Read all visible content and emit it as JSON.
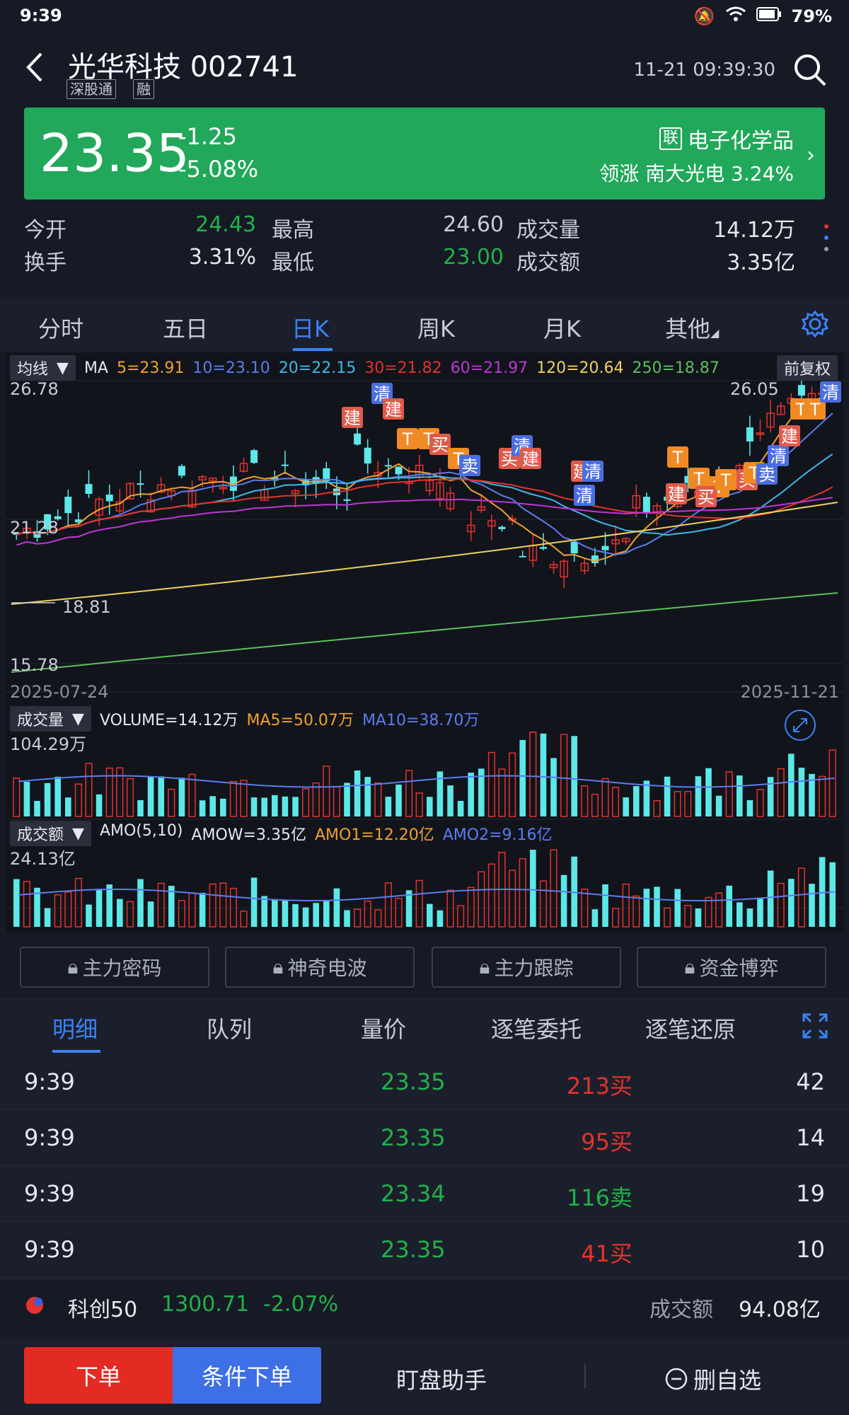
{
  "status_bar": {
    "time": "9:39",
    "battery": "79%"
  },
  "header": {
    "stock_name": "光华科技 002741",
    "tags": [
      "深股通",
      "融"
    ],
    "datetime": "11-21 09:39:30"
  },
  "quote": {
    "price": "23.35",
    "change": "-1.25",
    "change_pct": "-5.08%",
    "sector_prefix": "联",
    "sector": "电子化学品",
    "leader_label": "领涨",
    "leader": "南大光电 3.24%"
  },
  "stats": [
    {
      "label": "今开",
      "value": "24.43",
      "color": "#22b04b"
    },
    {
      "label": "最高",
      "value": "24.60",
      "color": "#c8ccd6"
    },
    {
      "label": "成交量",
      "value": "14.12万",
      "color": "#e6e8ee"
    },
    {
      "label": "换手",
      "value": "3.31%",
      "color": "#e6e8ee"
    },
    {
      "label": "最低",
      "value": "23.00",
      "color": "#22b04b"
    },
    {
      "label": "成交额",
      "value": "3.35亿",
      "color": "#e6e8ee"
    }
  ],
  "period_tabs": [
    "分时",
    "五日",
    "日K",
    "周K",
    "月K",
    "其他"
  ],
  "active_period": "日K",
  "kline": {
    "indicator": "均线",
    "ma_title": "MA",
    "ma_legend": [
      {
        "label": "5=23.91",
        "color": "#f0a030"
      },
      {
        "label": "10=23.10",
        "color": "#5b7cf0"
      },
      {
        "label": "20=22.15",
        "color": "#3fb8e8"
      },
      {
        "label": "30=21.82",
        "color": "#e5322d"
      },
      {
        "label": "60=21.97",
        "color": "#c034d8"
      },
      {
        "label": "120=20.64",
        "color": "#f0d060"
      },
      {
        "label": "250=18.87",
        "color": "#5cc05c"
      }
    ],
    "adjust": "前复权",
    "y_max": "26.78",
    "y_mid": "21.28",
    "y_min": "15.78",
    "max_mark": "26.05",
    "min_mark": "18.81",
    "start_date": "2025-07-24",
    "end_date": "2025-11-21",
    "signals": [
      "建",
      "清",
      "建",
      "T",
      "T",
      "买",
      "T",
      "卖",
      "买",
      "清",
      "建",
      "清",
      "建",
      "清",
      "T",
      "T",
      "建",
      "T",
      "买",
      "T",
      "买",
      "T",
      "卖",
      "清",
      "建",
      "T",
      "T",
      "清"
    ]
  },
  "volume": {
    "indicator": "成交量",
    "legend": [
      {
        "label": "VOLUME=14.12万",
        "color": "#e6e8ee"
      },
      {
        "label": "MA5=50.07万",
        "color": "#f0a030"
      },
      {
        "label": "MA10=38.70万",
        "color": "#5b7cf0"
      }
    ],
    "y_max": "104.29万"
  },
  "amount": {
    "indicator": "成交额",
    "legend": [
      {
        "label": "AMO(5,10)",
        "color": "#e6e8ee"
      },
      {
        "label": "AMOW=3.35亿",
        "color": "#e6e8ee"
      },
      {
        "label": "AMO1=12.20亿",
        "color": "#f0a030"
      },
      {
        "label": "AMO2=9.16亿",
        "color": "#5b7cf0"
      }
    ],
    "y_max": "24.13亿"
  },
  "tools": [
    "主力密码",
    "神奇电波",
    "主力跟踪",
    "资金博弈"
  ],
  "detail_tabs": [
    "明细",
    "队列",
    "量价",
    "逐笔委托",
    "逐笔还原"
  ],
  "trades": [
    {
      "time": "9:39",
      "price": "23.35",
      "vol": "213买",
      "side": "buy",
      "count": "42"
    },
    {
      "time": "9:39",
      "price": "23.35",
      "vol": "95买",
      "side": "buy",
      "count": "14"
    },
    {
      "time": "9:39",
      "price": "23.34",
      "vol": "116卖",
      "side": "sell",
      "count": "19"
    },
    {
      "time": "9:39",
      "price": "23.35",
      "vol": "41买",
      "side": "buy",
      "count": "10"
    }
  ],
  "ticker": {
    "name": "科创50",
    "value": "1300.71",
    "pct": "-2.07%",
    "amount_label": "成交额",
    "amount": "94.08亿"
  },
  "bottom_bar": {
    "order": "下单",
    "cond_order": "条件下单",
    "watch": "盯盘助手",
    "remove": "删自选"
  }
}
